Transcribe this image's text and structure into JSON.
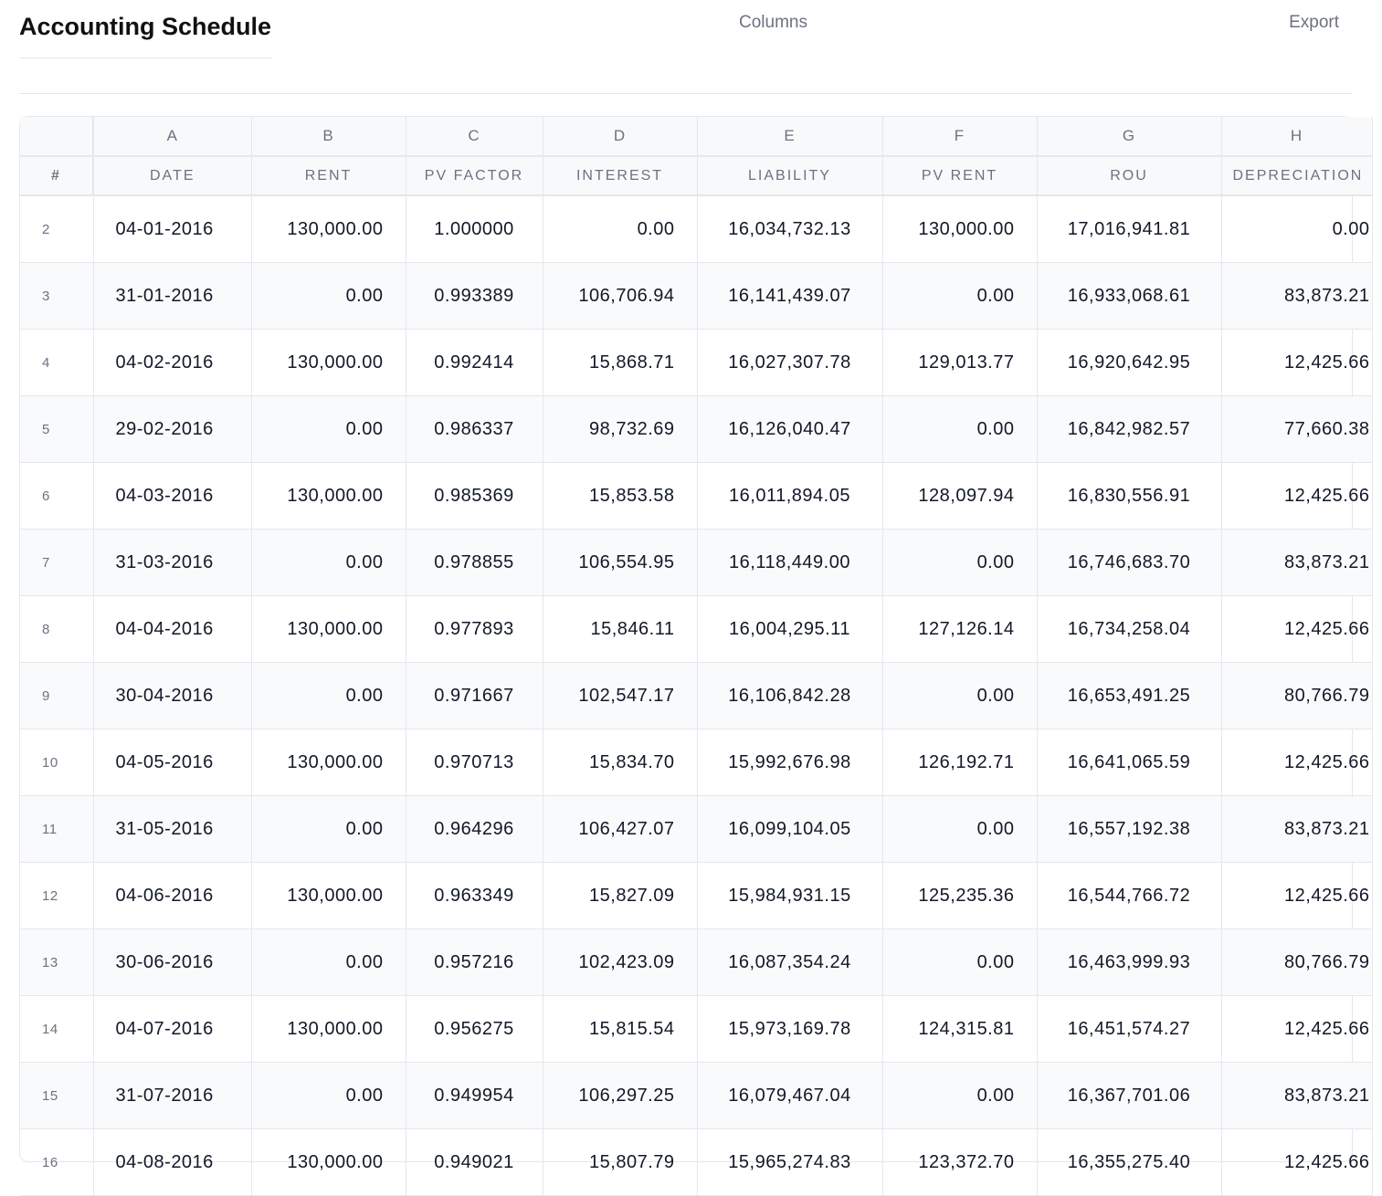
{
  "header": {
    "title": "Accounting Schedule",
    "columns_label": "Columns",
    "export_label": "Export"
  },
  "table": {
    "letters": [
      "A",
      "B",
      "C",
      "D",
      "E",
      "F",
      "G",
      "H"
    ],
    "columns": [
      "#",
      "DATE",
      "RENT",
      "PV FACTOR",
      "INTEREST",
      "LIABILITY",
      "PV RENT",
      "ROU",
      "DEPRECIATION"
    ],
    "rows": [
      [
        "2",
        "04-01-2016",
        "130,000.00",
        "1.000000",
        "0.00",
        "16,034,732.13",
        "130,000.00",
        "17,016,941.81",
        "0.00"
      ],
      [
        "3",
        "31-01-2016",
        "0.00",
        "0.993389",
        "106,706.94",
        "16,141,439.07",
        "0.00",
        "16,933,068.61",
        "83,873.21"
      ],
      [
        "4",
        "04-02-2016",
        "130,000.00",
        "0.992414",
        "15,868.71",
        "16,027,307.78",
        "129,013.77",
        "16,920,642.95",
        "12,425.66"
      ],
      [
        "5",
        "29-02-2016",
        "0.00",
        "0.986337",
        "98,732.69",
        "16,126,040.47",
        "0.00",
        "16,842,982.57",
        "77,660.38"
      ],
      [
        "6",
        "04-03-2016",
        "130,000.00",
        "0.985369",
        "15,853.58",
        "16,011,894.05",
        "128,097.94",
        "16,830,556.91",
        "12,425.66"
      ],
      [
        "7",
        "31-03-2016",
        "0.00",
        "0.978855",
        "106,554.95",
        "16,118,449.00",
        "0.00",
        "16,746,683.70",
        "83,873.21"
      ],
      [
        "8",
        "04-04-2016",
        "130,000.00",
        "0.977893",
        "15,846.11",
        "16,004,295.11",
        "127,126.14",
        "16,734,258.04",
        "12,425.66"
      ],
      [
        "9",
        "30-04-2016",
        "0.00",
        "0.971667",
        "102,547.17",
        "16,106,842.28",
        "0.00",
        "16,653,491.25",
        "80,766.79"
      ],
      [
        "10",
        "04-05-2016",
        "130,000.00",
        "0.970713",
        "15,834.70",
        "15,992,676.98",
        "126,192.71",
        "16,641,065.59",
        "12,425.66"
      ],
      [
        "11",
        "31-05-2016",
        "0.00",
        "0.964296",
        "106,427.07",
        "16,099,104.05",
        "0.00",
        "16,557,192.38",
        "83,873.21"
      ],
      [
        "12",
        "04-06-2016",
        "130,000.00",
        "0.963349",
        "15,827.09",
        "15,984,931.15",
        "125,235.36",
        "16,544,766.72",
        "12,425.66"
      ],
      [
        "13",
        "30-06-2016",
        "0.00",
        "0.957216",
        "102,423.09",
        "16,087,354.24",
        "0.00",
        "16,463,999.93",
        "80,766.79"
      ],
      [
        "14",
        "04-07-2016",
        "130,000.00",
        "0.956275",
        "15,815.54",
        "15,973,169.78",
        "124,315.81",
        "16,451,574.27",
        "12,425.66"
      ],
      [
        "15",
        "31-07-2016",
        "0.00",
        "0.949954",
        "106,297.25",
        "16,079,467.04",
        "0.00",
        "16,367,701.06",
        "83,873.21"
      ],
      [
        "16",
        "04-08-2016",
        "130,000.00",
        "0.949021",
        "15,807.79",
        "15,965,274.83",
        "123,372.70",
        "16,355,275.40",
        "12,425.66"
      ]
    ]
  }
}
